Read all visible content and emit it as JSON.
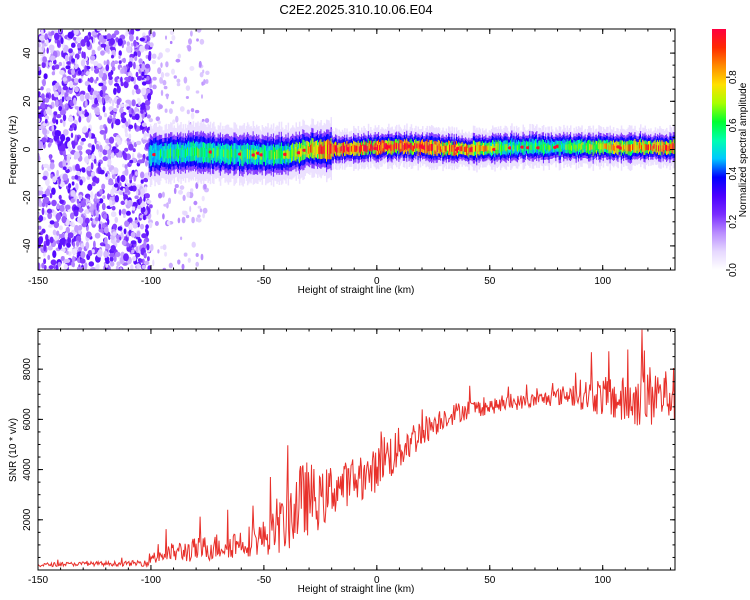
{
  "title": "C2E2.2025.310.10.06.E04",
  "colors": {
    "snr_line": "#e8302a",
    "ridge": "#00e070",
    "background": "#ffffff"
  },
  "colormap": [
    "#ffffff",
    "#e6d8ff",
    "#b98cff",
    "#7a2cff",
    "#4b00ff",
    "#0000ff",
    "#00c8ff",
    "#00ffb0",
    "#00ff30",
    "#a8ff00",
    "#ffe000",
    "#ff8c00",
    "#ff2a00",
    "#ff0040"
  ],
  "chart_data": [
    {
      "type": "heatmap",
      "title": "C2E2.2025.310.10.06.E04",
      "xlabel": "Height of straight line (km)",
      "ylabel": "Frequency (Hz)",
      "xlim": [
        -150,
        132
      ],
      "ylim": [
        -50,
        50
      ],
      "x_ticks": [
        -150,
        -100,
        -50,
        0,
        50,
        100
      ],
      "y_ticks": [
        -40,
        -20,
        0,
        20,
        40
      ],
      "colorbar": {
        "label": "Normalized spectral amplitude",
        "range": [
          0,
          1
        ],
        "ticks": [
          0.0,
          0.2,
          0.4,
          0.6,
          0.8
        ]
      },
      "ridge": {
        "description_points_x": [
          -101,
          -80,
          -60,
          -40,
          -30,
          -20,
          0,
          20,
          40,
          60,
          80,
          100,
          120,
          132
        ],
        "frequency_hz": [
          -2,
          -1,
          -2,
          -2,
          0,
          0,
          1,
          1,
          0,
          1,
          1,
          1,
          1,
          1
        ],
        "peak_amplitude": [
          0.55,
          0.6,
          0.6,
          0.65,
          0.8,
          0.95,
          0.95,
          0.95,
          0.9,
          0.6,
          0.6,
          0.75,
          0.9,
          0.9
        ]
      },
      "noise_region_x": [
        -150,
        -100
      ],
      "noise_amplitude": 0.25
    },
    {
      "type": "line",
      "xlabel": "Height of straight line (km)",
      "ylabel": "SNR (10 * v/v)",
      "xlim": [
        -150,
        132
      ],
      "ylim": [
        0,
        9600
      ],
      "x_ticks": [
        -150,
        -100,
        -50,
        0,
        50,
        100
      ],
      "y_ticks": [
        2000,
        4000,
        6000,
        8000
      ],
      "series": [
        {
          "x": [
            -150,
            -130,
            -110,
            -102,
            -100,
            -95,
            -90,
            -80,
            -70,
            -60,
            -50,
            -45,
            -40,
            -35,
            -30,
            -25,
            -20,
            -15,
            -10,
            -5,
            0,
            2,
            5,
            10,
            20,
            30,
            40,
            50,
            60,
            70,
            80,
            85,
            90,
            100,
            110,
            115,
            120,
            125,
            132
          ],
          "y": [
            200,
            250,
            250,
            300,
            500,
            600,
            700,
            800,
            950,
            1100,
            1300,
            1500,
            2000,
            2600,
            2900,
            2700,
            3200,
            3400,
            3500,
            3700,
            4000,
            4600,
            4500,
            4800,
            5500,
            6100,
            6400,
            6500,
            6650,
            6750,
            6900,
            7000,
            7000,
            6900,
            6700,
            6800,
            6900,
            6950,
            7000
          ],
          "noise": [
            80,
            80,
            100,
            150,
            300,
            350,
            400,
            500,
            550,
            600,
            700,
            900,
            1300,
            1600,
            1500,
            1100,
            1100,
            900,
            900,
            800,
            900,
            1100,
            1000,
            900,
            600,
            450,
            400,
            300,
            300,
            300,
            350,
            450,
            600,
            800,
            1000,
            1100,
            1300,
            1200,
            1100
          ]
        }
      ]
    }
  ]
}
